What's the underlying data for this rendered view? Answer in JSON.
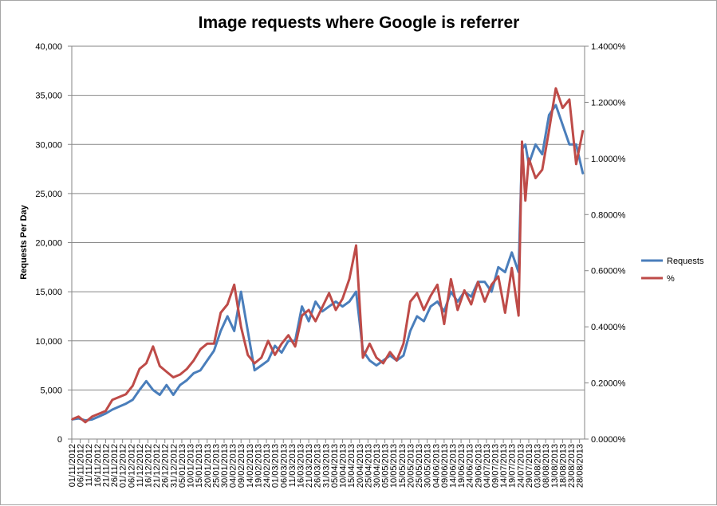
{
  "chart_data": {
    "type": "line",
    "title": "Image requests where Google is referrer",
    "ylabel": "Requests Per Day",
    "y2label": "",
    "ylim": [
      0,
      40000
    ],
    "y2lim": [
      0,
      0.014
    ],
    "y_ticks": [
      "0",
      "5,000",
      "10,000",
      "15,000",
      "20,000",
      "25,000",
      "30,000",
      "35,000",
      "40,000"
    ],
    "y2_ticks": [
      "0.0000%",
      "0.2000%",
      "0.4000%",
      "0.6000%",
      "0.8000%",
      "1.0000%",
      "1.2000%",
      "1.4000%"
    ],
    "x_start": "2012-11-01",
    "x_end": "2013-08-31",
    "x_ticks": [
      "01/11/2012",
      "06/11/2012",
      "11/11/2012",
      "16/11/2012",
      "21/11/2012",
      "26/11/2012",
      "01/12/2012",
      "06/12/2012",
      "11/12/2012",
      "16/12/2012",
      "21/12/2012",
      "26/12/2012",
      "31/12/2012",
      "05/01/2013",
      "10/01/2013",
      "15/01/2013",
      "20/01/2013",
      "25/01/2013",
      "30/01/2013",
      "04/02/2013",
      "09/02/2013",
      "14/02/2013",
      "19/02/2013",
      "24/02/2013",
      "01/03/2013",
      "06/03/2013",
      "11/03/2013",
      "16/03/2013",
      "21/03/2013",
      "26/03/2013",
      "31/03/2013",
      "05/04/2013",
      "10/04/2013",
      "15/04/2013",
      "20/04/2013",
      "25/04/2013",
      "30/04/2013",
      "05/05/2013",
      "10/05/2013",
      "15/05/2013",
      "20/05/2013",
      "25/05/2013",
      "30/05/2013",
      "04/06/2013",
      "09/06/2013",
      "14/06/2013",
      "19/06/2013",
      "24/06/2013",
      "29/06/2013",
      "04/07/2013",
      "09/07/2013",
      "14/07/2013",
      "19/07/2013",
      "24/07/2013",
      "29/07/2013",
      "03/08/2013",
      "08/08/2013",
      "13/08/2013",
      "18/08/2013",
      "23/08/2013",
      "28/08/2013"
    ],
    "grid": true,
    "legend_position": "right",
    "series": [
      {
        "name": "Requests",
        "axis": "left",
        "color": "#4a7ebb",
        "x": [
          "2012-11-01",
          "2012-11-05",
          "2012-11-09",
          "2012-11-13",
          "2012-11-17",
          "2012-11-21",
          "2012-11-25",
          "2012-11-29",
          "2012-12-03",
          "2012-12-07",
          "2012-12-11",
          "2012-12-15",
          "2012-12-19",
          "2012-12-23",
          "2012-12-27",
          "2012-12-31",
          "2013-01-04",
          "2013-01-08",
          "2013-01-12",
          "2013-01-16",
          "2013-01-20",
          "2013-01-24",
          "2013-01-28",
          "2013-02-01",
          "2013-02-05",
          "2013-02-09",
          "2013-02-13",
          "2013-02-17",
          "2013-02-21",
          "2013-02-25",
          "2013-03-01",
          "2013-03-05",
          "2013-03-09",
          "2013-03-13",
          "2013-03-17",
          "2013-03-21",
          "2013-03-25",
          "2013-03-29",
          "2013-04-02",
          "2013-04-06",
          "2013-04-10",
          "2013-04-14",
          "2013-04-18",
          "2013-04-22",
          "2013-04-26",
          "2013-04-30",
          "2013-05-04",
          "2013-05-08",
          "2013-05-12",
          "2013-05-16",
          "2013-05-20",
          "2013-05-24",
          "2013-05-28",
          "2013-06-01",
          "2013-06-05",
          "2013-06-09",
          "2013-06-13",
          "2013-06-17",
          "2013-06-21",
          "2013-06-25",
          "2013-06-29",
          "2013-07-03",
          "2013-07-07",
          "2013-07-11",
          "2013-07-15",
          "2013-07-19",
          "2013-07-23",
          "2013-07-25",
          "2013-07-27",
          "2013-07-29",
          "2013-08-02",
          "2013-08-06",
          "2013-08-10",
          "2013-08-14",
          "2013-08-18",
          "2013-08-22",
          "2013-08-26",
          "2013-08-30"
        ],
        "values": [
          2000,
          2100,
          1900,
          2000,
          2300,
          2600,
          3000,
          3300,
          3600,
          4000,
          5000,
          5900,
          5000,
          4500,
          5500,
          4500,
          5500,
          6000,
          6700,
          7000,
          8000,
          9000,
          11000,
          12500,
          11000,
          15000,
          11000,
          7000,
          7500,
          8000,
          9500,
          8800,
          10000,
          10000,
          13500,
          12000,
          14000,
          13000,
          13500,
          14000,
          13500,
          14000,
          15000,
          9000,
          8000,
          7500,
          8000,
          8500,
          8000,
          8500,
          11000,
          12500,
          12000,
          13500,
          14000,
          13000,
          15000,
          14000,
          15000,
          14500,
          16000,
          16000,
          15000,
          17500,
          17000,
          19000,
          17000,
          29500,
          30000,
          28000,
          30000,
          29000,
          33000,
          34000,
          32000,
          30000,
          30000,
          27000
        ]
      },
      {
        "name": "%",
        "axis": "right",
        "color": "#be4b48",
        "x": [
          "2012-11-01",
          "2012-11-05",
          "2012-11-09",
          "2012-11-13",
          "2012-11-17",
          "2012-11-21",
          "2012-11-25",
          "2012-11-29",
          "2012-12-03",
          "2012-12-07",
          "2012-12-11",
          "2012-12-15",
          "2012-12-19",
          "2012-12-23",
          "2012-12-27",
          "2012-12-31",
          "2013-01-04",
          "2013-01-08",
          "2013-01-12",
          "2013-01-16",
          "2013-01-20",
          "2013-01-24",
          "2013-01-28",
          "2013-02-01",
          "2013-02-05",
          "2013-02-09",
          "2013-02-13",
          "2013-02-17",
          "2013-02-21",
          "2013-02-25",
          "2013-03-01",
          "2013-03-05",
          "2013-03-09",
          "2013-03-13",
          "2013-03-17",
          "2013-03-21",
          "2013-03-25",
          "2013-03-29",
          "2013-04-02",
          "2013-04-06",
          "2013-04-10",
          "2013-04-14",
          "2013-04-18",
          "2013-04-22",
          "2013-04-26",
          "2013-04-30",
          "2013-05-04",
          "2013-05-08",
          "2013-05-12",
          "2013-05-16",
          "2013-05-20",
          "2013-05-24",
          "2013-05-28",
          "2013-06-01",
          "2013-06-05",
          "2013-06-09",
          "2013-06-13",
          "2013-06-17",
          "2013-06-21",
          "2013-06-25",
          "2013-06-29",
          "2013-07-03",
          "2013-07-07",
          "2013-07-11",
          "2013-07-15",
          "2013-07-19",
          "2013-07-23",
          "2013-07-25",
          "2013-07-27",
          "2013-07-29",
          "2013-08-02",
          "2013-08-06",
          "2013-08-10",
          "2013-08-14",
          "2013-08-18",
          "2013-08-22",
          "2013-08-26",
          "2013-08-30"
        ],
        "values": [
          0.0007,
          0.0008,
          0.0006,
          0.0008,
          0.0009,
          0.001,
          0.0014,
          0.0015,
          0.0016,
          0.0019,
          0.0025,
          0.0027,
          0.0033,
          0.0026,
          0.0024,
          0.0022,
          0.0023,
          0.0025,
          0.0028,
          0.0032,
          0.0034,
          0.0034,
          0.0045,
          0.0048,
          0.0055,
          0.004,
          0.003,
          0.0027,
          0.0029,
          0.0035,
          0.003,
          0.0034,
          0.0037,
          0.0033,
          0.0044,
          0.0046,
          0.0042,
          0.0047,
          0.0052,
          0.0046,
          0.005,
          0.0057,
          0.0069,
          0.0029,
          0.0034,
          0.0029,
          0.0027,
          0.0031,
          0.0028,
          0.0034,
          0.0049,
          0.0052,
          0.0046,
          0.0051,
          0.0055,
          0.0041,
          0.0057,
          0.0046,
          0.0053,
          0.0048,
          0.0056,
          0.0049,
          0.0055,
          0.0058,
          0.0045,
          0.0061,
          0.0044,
          0.0106,
          0.0085,
          0.01,
          0.0093,
          0.0096,
          0.011,
          0.0125,
          0.0118,
          0.0121,
          0.0098,
          0.011
        ]
      }
    ]
  }
}
